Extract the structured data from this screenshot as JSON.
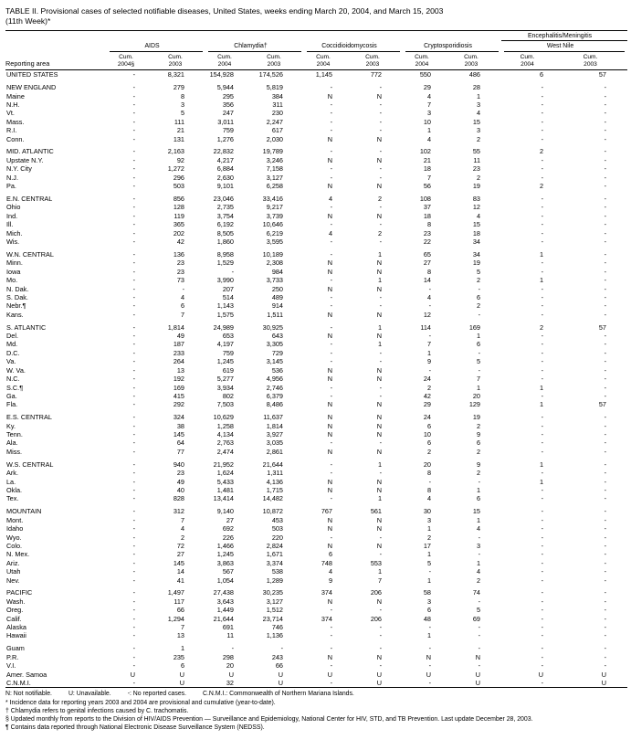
{
  "title": "TABLE II. Provisional cases of selected notifiable diseases, United States, weeks ending March 20, 2004, and March 15, 2003",
  "subtitle": "(11th Week)*",
  "table": {
    "area_header": "Reporting area",
    "groups": [
      {
        "label": "AIDS",
        "cols": [
          "Cum.\n2004§",
          "Cum.\n2003"
        ]
      },
      {
        "label": "Chlamydia†",
        "cols": [
          "Cum.\n2004",
          "Cum.\n2003"
        ]
      },
      {
        "label": "Coccidioidomycosis",
        "cols": [
          "Cum.\n2004",
          "Cum.\n2003"
        ]
      },
      {
        "label": "Cryptosporidiosis",
        "cols": [
          "Cum.\n2004",
          "Cum.\n2003"
        ]
      },
      {
        "toplabel": "Encephalitis/Meningitis",
        "label": "West Nile",
        "cols": [
          "Cum.\n2004",
          "Cum.\n2003"
        ]
      }
    ],
    "sections": [
      [
        [
          "UNITED STATES",
          "-",
          "8,321",
          "154,928",
          "174,526",
          "1,145",
          "772",
          "550",
          "486",
          "6",
          "57"
        ]
      ],
      [
        [
          "NEW ENGLAND",
          "-",
          "279",
          "5,944",
          "5,819",
          "-",
          "-",
          "29",
          "28",
          "-",
          "-"
        ],
        [
          "Maine",
          "-",
          "8",
          "295",
          "384",
          "N",
          "N",
          "4",
          "1",
          "-",
          "-"
        ],
        [
          "N.H.",
          "-",
          "3",
          "356",
          "311",
          "-",
          "-",
          "7",
          "3",
          "-",
          "-"
        ],
        [
          "Vt.",
          "-",
          "5",
          "247",
          "230",
          "-",
          "-",
          "3",
          "4",
          "-",
          "-"
        ],
        [
          "Mass.",
          "-",
          "111",
          "3,011",
          "2,247",
          "-",
          "-",
          "10",
          "15",
          "-",
          "-"
        ],
        [
          "R.I.",
          "-",
          "21",
          "759",
          "617",
          "-",
          "-",
          "1",
          "3",
          "-",
          "-"
        ],
        [
          "Conn.",
          "-",
          "131",
          "1,276",
          "2,030",
          "N",
          "N",
          "4",
          "2",
          "-",
          "-"
        ]
      ],
      [
        [
          "MID. ATLANTIC",
          "-",
          "2,163",
          "22,832",
          "19,789",
          "-",
          "-",
          "102",
          "55",
          "2",
          "-"
        ],
        [
          "Upstate N.Y.",
          "-",
          "92",
          "4,217",
          "3,246",
          "N",
          "N",
          "21",
          "11",
          "-",
          "-"
        ],
        [
          "N.Y. City",
          "-",
          "1,272",
          "6,884",
          "7,158",
          "-",
          "-",
          "18",
          "23",
          "-",
          "-"
        ],
        [
          "N.J.",
          "-",
          "296",
          "2,630",
          "3,127",
          "-",
          "-",
          "7",
          "2",
          "-",
          "-"
        ],
        [
          "Pa.",
          "-",
          "503",
          "9,101",
          "6,258",
          "N",
          "N",
          "56",
          "19",
          "2",
          "-"
        ]
      ],
      [
        [
          "E.N. CENTRAL",
          "-",
          "856",
          "23,046",
          "33,416",
          "4",
          "2",
          "108",
          "83",
          "-",
          "-"
        ],
        [
          "Ohio",
          "-",
          "128",
          "2,735",
          "9,217",
          "-",
          "-",
          "37",
          "12",
          "-",
          "-"
        ],
        [
          "Ind.",
          "-",
          "119",
          "3,754",
          "3,739",
          "N",
          "N",
          "18",
          "4",
          "-",
          "-"
        ],
        [
          "Ill.",
          "-",
          "365",
          "6,192",
          "10,646",
          "-",
          "-",
          "8",
          "15",
          "-",
          "-"
        ],
        [
          "Mich.",
          "-",
          "202",
          "8,505",
          "6,219",
          "4",
          "2",
          "23",
          "18",
          "-",
          "-"
        ],
        [
          "Wis.",
          "-",
          "42",
          "1,860",
          "3,595",
          "-",
          "-",
          "22",
          "34",
          "-",
          "-"
        ]
      ],
      [
        [
          "W.N. CENTRAL",
          "-",
          "136",
          "8,958",
          "10,189",
          "-",
          "1",
          "65",
          "34",
          "1",
          "-"
        ],
        [
          "Minn.",
          "-",
          "23",
          "1,529",
          "2,308",
          "N",
          "N",
          "27",
          "19",
          "-",
          "-"
        ],
        [
          "Iowa",
          "-",
          "23",
          "-",
          "984",
          "N",
          "N",
          "8",
          "5",
          "-",
          "-"
        ],
        [
          "Mo.",
          "-",
          "73",
          "3,990",
          "3,733",
          "-",
          "1",
          "14",
          "2",
          "1",
          "-"
        ],
        [
          "N. Dak.",
          "-",
          "-",
          "207",
          "250",
          "N",
          "N",
          "-",
          "-",
          "-",
          "-"
        ],
        [
          "S. Dak.",
          "-",
          "4",
          "514",
          "489",
          "-",
          "-",
          "4",
          "6",
          "-",
          "-"
        ],
        [
          "Nebr.¶",
          "-",
          "6",
          "1,143",
          "914",
          "-",
          "-",
          "-",
          "2",
          "-",
          "-"
        ],
        [
          "Kans.",
          "-",
          "7",
          "1,575",
          "1,511",
          "N",
          "N",
          "12",
          "-",
          "-",
          "-"
        ]
      ],
      [
        [
          "S. ATLANTIC",
          "-",
          "1,814",
          "24,989",
          "30,925",
          "-",
          "1",
          "114",
          "169",
          "2",
          "57"
        ],
        [
          "Del.",
          "-",
          "49",
          "653",
          "643",
          "N",
          "N",
          "-",
          "1",
          "-",
          "-"
        ],
        [
          "Md.",
          "-",
          "187",
          "4,197",
          "3,305",
          "-",
          "1",
          "7",
          "6",
          "-",
          "-"
        ],
        [
          "D.C.",
          "-",
          "233",
          "759",
          "729",
          "-",
          "-",
          "1",
          "-",
          "-",
          "-"
        ],
        [
          "Va.",
          "-",
          "264",
          "1,245",
          "3,145",
          "-",
          "-",
          "9",
          "5",
          "-",
          "-"
        ],
        [
          "W. Va.",
          "-",
          "13",
          "619",
          "536",
          "N",
          "N",
          "-",
          "-",
          "-",
          "-"
        ],
        [
          "N.C.",
          "-",
          "192",
          "5,277",
          "4,956",
          "N",
          "N",
          "24",
          "7",
          "-",
          "-"
        ],
        [
          "S.C.¶",
          "-",
          "169",
          "3,934",
          "2,746",
          "-",
          "-",
          "2",
          "1",
          "1",
          "-"
        ],
        [
          "Ga.",
          "-",
          "415",
          "802",
          "6,379",
          "-",
          "-",
          "42",
          "20",
          "-",
          "-"
        ],
        [
          "Fla.",
          "-",
          "292",
          "7,503",
          "8,486",
          "N",
          "N",
          "29",
          "129",
          "1",
          "57"
        ]
      ],
      [
        [
          "E.S. CENTRAL",
          "-",
          "324",
          "10,629",
          "11,637",
          "N",
          "N",
          "24",
          "19",
          "-",
          "-"
        ],
        [
          "Ky.",
          "-",
          "38",
          "1,258",
          "1,814",
          "N",
          "N",
          "6",
          "2",
          "-",
          "-"
        ],
        [
          "Tenn.",
          "-",
          "145",
          "4,134",
          "3,927",
          "N",
          "N",
          "10",
          "9",
          "-",
          "-"
        ],
        [
          "Ala.",
          "-",
          "64",
          "2,763",
          "3,035",
          "-",
          "-",
          "6",
          "6",
          "-",
          "-"
        ],
        [
          "Miss.",
          "-",
          "77",
          "2,474",
          "2,861",
          "N",
          "N",
          "2",
          "2",
          "-",
          "-"
        ]
      ],
      [
        [
          "W.S. CENTRAL",
          "-",
          "940",
          "21,952",
          "21,644",
          "-",
          "1",
          "20",
          "9",
          "1",
          "-"
        ],
        [
          "Ark.",
          "-",
          "23",
          "1,624",
          "1,311",
          "-",
          "-",
          "8",
          "2",
          "-",
          "-"
        ],
        [
          "La.",
          "-",
          "49",
          "5,433",
          "4,136",
          "N",
          "N",
          "-",
          "-",
          "1",
          "-"
        ],
        [
          "Okla.",
          "-",
          "40",
          "1,481",
          "1,715",
          "N",
          "N",
          "8",
          "1",
          "-",
          "-"
        ],
        [
          "Tex.",
          "-",
          "828",
          "13,414",
          "14,482",
          "-",
          "1",
          "4",
          "6",
          "-",
          "-"
        ]
      ],
      [
        [
          "MOUNTAIN",
          "-",
          "312",
          "9,140",
          "10,872",
          "767",
          "561",
          "30",
          "15",
          "-",
          "-"
        ],
        [
          "Mont.",
          "-",
          "7",
          "27",
          "453",
          "N",
          "N",
          "3",
          "1",
          "-",
          "-"
        ],
        [
          "Idaho",
          "-",
          "4",
          "692",
          "503",
          "N",
          "N",
          "1",
          "4",
          "-",
          "-"
        ],
        [
          "Wyo.",
          "-",
          "2",
          "226",
          "220",
          "-",
          "-",
          "2",
          "-",
          "-",
          "-"
        ],
        [
          "Colo.",
          "-",
          "72",
          "1,466",
          "2,824",
          "N",
          "N",
          "17",
          "3",
          "-",
          "-"
        ],
        [
          "N. Mex.",
          "-",
          "27",
          "1,245",
          "1,671",
          "6",
          "-",
          "1",
          "-",
          "-",
          "-"
        ],
        [
          "Ariz.",
          "-",
          "145",
          "3,863",
          "3,374",
          "748",
          "553",
          "5",
          "1",
          "-",
          "-"
        ],
        [
          "Utah",
          "-",
          "14",
          "567",
          "538",
          "4",
          "1",
          "-",
          "4",
          "-",
          "-"
        ],
        [
          "Nev.",
          "-",
          "41",
          "1,054",
          "1,289",
          "9",
          "7",
          "1",
          "2",
          "-",
          "-"
        ]
      ],
      [
        [
          "PACIFIC",
          "-",
          "1,497",
          "27,438",
          "30,235",
          "374",
          "206",
          "58",
          "74",
          "-",
          "-"
        ],
        [
          "Wash.",
          "-",
          "117",
          "3,643",
          "3,127",
          "N",
          "N",
          "3",
          "-",
          "-",
          "-"
        ],
        [
          "Oreg.",
          "-",
          "66",
          "1,449",
          "1,512",
          "-",
          "-",
          "6",
          "5",
          "-",
          "-"
        ],
        [
          "Calif.",
          "-",
          "1,294",
          "21,644",
          "23,714",
          "374",
          "206",
          "48",
          "69",
          "-",
          "-"
        ],
        [
          "Alaska",
          "-",
          "7",
          "691",
          "746",
          "-",
          "-",
          "-",
          "-",
          "-",
          "-"
        ],
        [
          "Hawaii",
          "-",
          "13",
          "11",
          "1,136",
          "-",
          "-",
          "1",
          "-",
          "-",
          "-"
        ]
      ],
      [
        [
          "Guam",
          "-",
          "1",
          "-",
          "-",
          "-",
          "-",
          "-",
          "-",
          "-",
          "-"
        ],
        [
          "P.R.",
          "-",
          "235",
          "298",
          "243",
          "N",
          "N",
          "N",
          "N",
          "-",
          "-"
        ],
        [
          "V.I.",
          "-",
          "6",
          "20",
          "66",
          "-",
          "-",
          "-",
          "-",
          "-",
          "-"
        ],
        [
          "Amer. Samoa",
          "U",
          "U",
          "U",
          "U",
          "U",
          "U",
          "U",
          "U",
          "U",
          "U"
        ],
        [
          "C.N.M.I.",
          "-",
          "U",
          "32",
          "U",
          "-",
          "U",
          "-",
          "U",
          "-",
          "U"
        ]
      ]
    ]
  },
  "footnotes": {
    "legend": [
      "N: Not notifiable.",
      "U: Unavailable.",
      "-: No reported cases.",
      "C.N.M.I.: Commonwealth of Northern Mariana Islands."
    ],
    "notes": [
      "* Incidence data for reporting years 2003 and 2004 are provisional and cumulative (year-to-date).",
      "† Chlamydia refers to genital infections caused by C. trachomatis.",
      "§ Updated monthly from reports to the Division of HIV/AIDS Prevention — Surveillance and Epidemiology, National Center for HIV, STD, and TB Prevention. Last update December 28, 2003.",
      "¶ Contains data reported through National Electronic Disease Surveillance System (NEDSS)."
    ]
  }
}
